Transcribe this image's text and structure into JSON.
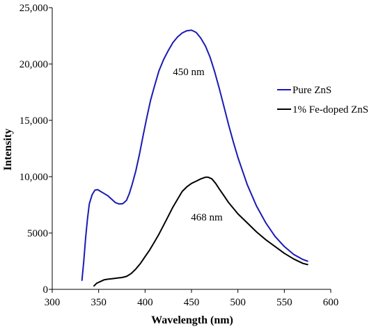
{
  "chart_data": {
    "type": "line",
    "title": "",
    "xlabel": "Wavelength (nm)",
    "ylabel": "Intensity",
    "xlim": [
      300,
      600
    ],
    "ylim": [
      0,
      25000
    ],
    "x_ticks": [
      300,
      350,
      400,
      450,
      500,
      550,
      600
    ],
    "x_tick_labels": [
      "300",
      "350",
      "400",
      "450",
      "500",
      "550",
      "600"
    ],
    "y_ticks": [
      0,
      5000,
      10000,
      15000,
      20000,
      25000
    ],
    "y_tick_labels": [
      "0",
      "5000",
      "10,000",
      "15,000",
      "20,000",
      "25,000"
    ],
    "grid": false,
    "legend_position": "right",
    "series": [
      {
        "name": "Pure ZnS",
        "color": "#1a1ab4",
        "points": [
          [
            332,
            800
          ],
          [
            334,
            2500
          ],
          [
            336,
            4600
          ],
          [
            338,
            6300
          ],
          [
            340,
            7600
          ],
          [
            343,
            8400
          ],
          [
            346,
            8800
          ],
          [
            349,
            8850
          ],
          [
            352,
            8700
          ],
          [
            356,
            8500
          ],
          [
            360,
            8300
          ],
          [
            364,
            8000
          ],
          [
            368,
            7700
          ],
          [
            372,
            7580
          ],
          [
            376,
            7600
          ],
          [
            380,
            7900
          ],
          [
            383,
            8500
          ],
          [
            386,
            9300
          ],
          [
            390,
            10500
          ],
          [
            394,
            12000
          ],
          [
            398,
            13700
          ],
          [
            402,
            15300
          ],
          [
            406,
            16800
          ],
          [
            410,
            18000
          ],
          [
            415,
            19400
          ],
          [
            420,
            20400
          ],
          [
            425,
            21200
          ],
          [
            430,
            21900
          ],
          [
            435,
            22400
          ],
          [
            440,
            22750
          ],
          [
            445,
            22950
          ],
          [
            450,
            23000
          ],
          [
            455,
            22800
          ],
          [
            460,
            22300
          ],
          [
            465,
            21600
          ],
          [
            470,
            20600
          ],
          [
            475,
            19300
          ],
          [
            480,
            17800
          ],
          [
            485,
            16200
          ],
          [
            490,
            14600
          ],
          [
            495,
            13100
          ],
          [
            500,
            11700
          ],
          [
            510,
            9300
          ],
          [
            520,
            7400
          ],
          [
            530,
            5900
          ],
          [
            540,
            4700
          ],
          [
            550,
            3800
          ],
          [
            560,
            3100
          ],
          [
            570,
            2650
          ],
          [
            575,
            2500
          ]
        ]
      },
      {
        "name": "1% Fe-doped ZnS",
        "color": "#000000",
        "points": [
          [
            345,
            300
          ],
          [
            348,
            550
          ],
          [
            352,
            700
          ],
          [
            356,
            850
          ],
          [
            360,
            900
          ],
          [
            365,
            950
          ],
          [
            370,
            1000
          ],
          [
            375,
            1050
          ],
          [
            380,
            1150
          ],
          [
            385,
            1400
          ],
          [
            390,
            1800
          ],
          [
            395,
            2300
          ],
          [
            400,
            2900
          ],
          [
            405,
            3500
          ],
          [
            410,
            4200
          ],
          [
            415,
            4900
          ],
          [
            420,
            5700
          ],
          [
            425,
            6500
          ],
          [
            430,
            7300
          ],
          [
            435,
            8000
          ],
          [
            440,
            8700
          ],
          [
            445,
            9100
          ],
          [
            450,
            9400
          ],
          [
            455,
            9600
          ],
          [
            460,
            9800
          ],
          [
            465,
            9950
          ],
          [
            468,
            9950
          ],
          [
            472,
            9800
          ],
          [
            476,
            9400
          ],
          [
            480,
            8900
          ],
          [
            485,
            8300
          ],
          [
            490,
            7700
          ],
          [
            495,
            7200
          ],
          [
            500,
            6700
          ],
          [
            505,
            6300
          ],
          [
            510,
            5900
          ],
          [
            520,
            5100
          ],
          [
            530,
            4400
          ],
          [
            540,
            3800
          ],
          [
            550,
            3200
          ],
          [
            560,
            2700
          ],
          [
            570,
            2300
          ],
          [
            575,
            2200
          ]
        ]
      }
    ],
    "annotations": [
      {
        "text": "450 nm",
        "x": 450,
        "y": 19700
      },
      {
        "text": "468 nm",
        "x": 468,
        "y": 6500
      }
    ]
  }
}
